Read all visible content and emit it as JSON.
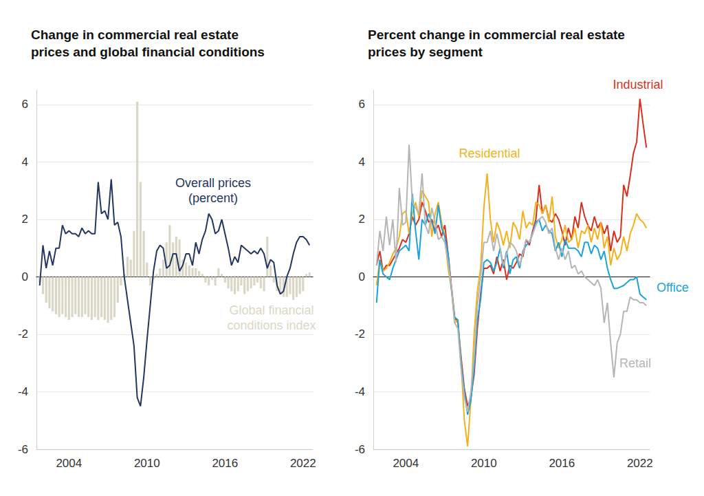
{
  "chart_data": [
    {
      "type": "line",
      "title": "Change in commercial real estate\nprices and global financial conditions",
      "x": [
        2001.75,
        2002,
        2002.25,
        2002.5,
        2002.75,
        2003,
        2003.25,
        2003.5,
        2003.75,
        2004,
        2004.25,
        2004.5,
        2004.75,
        2005,
        2005.25,
        2005.5,
        2005.75,
        2006,
        2006.25,
        2006.5,
        2006.75,
        2007,
        2007.25,
        2007.5,
        2007.75,
        2008,
        2008.25,
        2008.5,
        2008.75,
        2009,
        2009.25,
        2009.5,
        2009.75,
        2010,
        2010.25,
        2010.5,
        2010.75,
        2011,
        2011.25,
        2011.5,
        2011.75,
        2012,
        2012.25,
        2012.5,
        2012.75,
        2013,
        2013.25,
        2013.5,
        2013.75,
        2014,
        2014.25,
        2014.5,
        2014.75,
        2015,
        2015.25,
        2015.5,
        2015.75,
        2016,
        2016.25,
        2016.5,
        2016.75,
        2017,
        2017.25,
        2017.5,
        2017.75,
        2018,
        2018.25,
        2018.5,
        2018.75,
        2019,
        2019.25,
        2019.5,
        2019.75,
        2020,
        2020.25,
        2020.5,
        2020.75,
        2021,
        2021.25,
        2021.5,
        2021.75,
        2022,
        2022.25,
        2022.5
      ],
      "xlim": [
        2001.5,
        2022.75
      ],
      "xticks": [
        2004,
        2010,
        2016,
        2022
      ],
      "ylim": [
        -6,
        6.5
      ],
      "yticks": [
        -6,
        -4,
        -2,
        0,
        2,
        4,
        6
      ],
      "grid": true,
      "series": [
        {
          "name": "Global financial\nconditions index",
          "type": "bar",
          "color": "#dad7c6",
          "values": [
            -0.2,
            -0.6,
            -0.9,
            -1.1,
            -1.2,
            -1.3,
            -1.4,
            -1.3,
            -1.4,
            -1.5,
            -1.4,
            -1.3,
            -1.4,
            -1.4,
            -1.3,
            -1.4,
            -1.5,
            -1.4,
            -1.5,
            -1.4,
            -1.5,
            -1.6,
            -1.5,
            -1.4,
            -0.9,
            -0.3,
            0.1,
            0.7,
            0.6,
            1.6,
            6.1,
            3.3,
            1.6,
            0.5,
            -0.3,
            -0.1,
            0.1,
            0.3,
            0.6,
            1.2,
            1.8,
            1.2,
            1.4,
            1.3,
            0.6,
            0.5,
            0.4,
            0.3,
            0.3,
            0.2,
            0.1,
            -0.2,
            -0.3,
            -0.1,
            -0.3,
            0.3,
            0.1,
            -0.2,
            -0.4,
            -0.5,
            -0.6,
            -0.5,
            -0.3,
            -0.6,
            -0.5,
            -0.4,
            -0.3,
            -0.2,
            -0.4,
            -0.5,
            1.4,
            0.4,
            -0.2,
            -0.5,
            -0.6,
            -0.7,
            -0.7,
            -0.6,
            -0.8,
            -0.7,
            -0.6,
            -0.5,
            0.1,
            0.15
          ]
        },
        {
          "name": "Overall prices\n(percent)",
          "type": "line",
          "color": "#23365f",
          "values": [
            -0.3,
            1.1,
            0.3,
            0.9,
            0.4,
            1.0,
            1.0,
            1.8,
            1.5,
            1.6,
            1.5,
            1.5,
            1.4,
            1.7,
            1.5,
            1.6,
            1.5,
            1.5,
            3.3,
            2.2,
            2.3,
            2.0,
            3.4,
            1.8,
            1.9,
            1.4,
            0.0,
            -0.8,
            -1.6,
            -2.4,
            -4.2,
            -4.5,
            -3.5,
            -2.2,
            -1.0,
            0.2,
            0.9,
            1.1,
            1.0,
            0.3,
            0.4,
            0.8,
            0.8,
            0.2,
            0.4,
            0.8,
            0.8,
            0.4,
            1.2,
            0.8,
            1.3,
            1.6,
            2.2,
            2.0,
            1.5,
            1.6,
            2.0,
            1.5,
            1.0,
            0.4,
            0.7,
            0.5,
            1.1,
            1.0,
            0.9,
            0.8,
            0.9,
            0.8,
            1.0,
            0.8,
            0.3,
            0.6,
            0.5,
            -0.3,
            -0.6,
            -0.5,
            0.0,
            0.3,
            0.8,
            1.2,
            1.4,
            1.4,
            1.3,
            1.1
          ]
        }
      ]
    },
    {
      "type": "line",
      "title": "Percent change in commercial real estate\nprices by segment",
      "x": [
        2001.75,
        2002,
        2002.25,
        2002.5,
        2002.75,
        2003,
        2003.25,
        2003.5,
        2003.75,
        2004,
        2004.25,
        2004.5,
        2004.75,
        2005,
        2005.25,
        2005.5,
        2005.75,
        2006,
        2006.25,
        2006.5,
        2006.75,
        2007,
        2007.25,
        2007.5,
        2007.75,
        2008,
        2008.25,
        2008.5,
        2008.75,
        2009,
        2009.25,
        2009.5,
        2009.75,
        2010,
        2010.25,
        2010.5,
        2010.75,
        2011,
        2011.25,
        2011.5,
        2011.75,
        2012,
        2012.25,
        2012.5,
        2012.75,
        2013,
        2013.25,
        2013.5,
        2013.75,
        2014,
        2014.25,
        2014.5,
        2014.75,
        2015,
        2015.25,
        2015.5,
        2015.75,
        2016,
        2016.25,
        2016.5,
        2016.75,
        2017,
        2017.25,
        2017.5,
        2017.75,
        2018,
        2018.25,
        2018.5,
        2018.75,
        2019,
        2019.25,
        2019.5,
        2019.75,
        2020,
        2020.25,
        2020.5,
        2020.75,
        2021,
        2021.25,
        2021.5,
        2021.75,
        2022,
        2022.25,
        2022.5
      ],
      "xlim": [
        2001.5,
        2022.75
      ],
      "xticks": [
        2004,
        2010,
        2016,
        2022
      ],
      "ylim": [
        -6,
        6.5
      ],
      "yticks": [
        -6,
        -4,
        -2,
        0,
        2,
        4,
        6
      ],
      "grid": true,
      "series": [
        {
          "name": "Industrial",
          "color": "#d7301f",
          "values": [
            0.4,
            0.9,
            0.2,
            0.4,
            0.4,
            0.6,
            0.8,
            1.0,
            1.3,
            1.2,
            1.5,
            2.1,
            1.8,
            2.0,
            2.6,
            2.3,
            1.9,
            2.0,
            1.6,
            1.8,
            1.4,
            1.8,
            0.8,
            -0.3,
            -1.4,
            -1.6,
            -2.8,
            -3.9,
            -4.5,
            -4.2,
            -3.4,
            -1.8,
            -0.6,
            0.3,
            0.3,
            0.4,
            0.1,
            0.7,
            0.2,
            0.6,
            -0.1,
            0.4,
            0.3,
            0.5,
            0.8,
            0.7,
            1.3,
            1.1,
            1.6,
            2.0,
            3.2,
            2.2,
            2.5,
            2.0,
            1.9,
            2.2,
            2.0,
            1.6,
            1.1,
            1.7,
            1.3,
            2.1,
            1.7,
            2.6,
            2.1,
            1.8,
            1.6,
            2.1,
            1.7,
            1.9,
            1.5,
            1.8,
            0.9,
            1.6,
            1.2,
            1.4,
            3.2,
            2.8,
            3.5,
            4.3,
            4.7,
            6.2,
            5.3,
            4.5
          ]
        },
        {
          "name": "Residential",
          "color": "#f2b21b",
          "values": [
            -0.3,
            0.6,
            0.2,
            0.3,
            0.5,
            0.8,
            1.0,
            1.4,
            2.2,
            2.3,
            1.5,
            2.2,
            2.6,
            2.1,
            3.0,
            2.8,
            2.6,
            1.4,
            2.2,
            2.6,
            1.9,
            1.4,
            0.3,
            -0.4,
            -1.6,
            -1.5,
            -3.0,
            -5.0,
            -5.9,
            -4.3,
            -2.0,
            -0.5,
            0.3,
            2.4,
            3.6,
            2.0,
            1.2,
            1.9,
            1.6,
            1.1,
            1.6,
            1.0,
            1.9,
            1.7,
            1.3,
            2.3,
            1.7,
            1.9,
            1.8,
            2.6,
            2.5,
            2.2,
            2.5,
            1.9,
            2.8,
            1.4,
            1.0,
            1.3,
            1.8,
            1.2,
            1.3,
            1.7,
            1.0,
            1.6,
            1.5,
            1.8,
            1.2,
            1.7,
            1.3,
            1.9,
            1.0,
            1.4,
            0.4,
            1.0,
            0.6,
            0.8,
            1.4,
            0.9,
            1.5,
            1.8,
            2.2,
            2.0,
            1.9,
            1.7
          ]
        },
        {
          "name": "Office",
          "color": "#1aa3d9",
          "values": [
            -0.9,
            0.6,
            0.1,
            0.0,
            -0.1,
            0.3,
            0.6,
            0.9,
            1.0,
            1.1,
            0.9,
            2.9,
            1.6,
            0.6,
            2.0,
            1.8,
            2.2,
            1.9,
            1.5,
            2.5,
            1.7,
            1.4,
            0.8,
            -0.4,
            -1.4,
            -1.5,
            -3.0,
            -4.0,
            -4.8,
            -4.3,
            -3.2,
            -1.5,
            -0.8,
            0.5,
            0.6,
            0.5,
            0.2,
            0.5,
            1.0,
            0.3,
            0.9,
            0.1,
            0.6,
            0.7,
            0.3,
            0.9,
            1.1,
            1.2,
            1.5,
            1.9,
            2.0,
            1.6,
            1.8,
            1.6,
            1.5,
            0.9,
            1.2,
            0.7,
            1.3,
            1.0,
            1.0,
            1.0,
            0.9,
            0.7,
            1.2,
            1.2,
            0.8,
            1.1,
            1.0,
            0.6,
            0.9,
            0.3,
            -0.1,
            -0.4,
            -0.4,
            -0.35,
            -0.3,
            -0.2,
            -0.1,
            -0.1,
            0.0,
            -0.6,
            -0.7,
            -0.8
          ]
        },
        {
          "name": "Retail",
          "color": "#b5b5b5",
          "values": [
            0.4,
            1.6,
            0.9,
            2.1,
            1.1,
            2.0,
            0.5,
            3.1,
            1.8,
            1.9,
            4.6,
            2.6,
            2.4,
            2.2,
            3.6,
            1.8,
            1.5,
            2.4,
            1.9,
            1.3,
            1.4,
            1.2,
            0.5,
            -0.3,
            -1.6,
            -1.8,
            -3.2,
            -4.2,
            -4.7,
            -4.0,
            -2.8,
            -1.0,
            0.0,
            1.2,
            1.2,
            1.6,
            0.9,
            1.5,
            1.0,
            0.4,
            0.8,
            1.2,
            1.1,
            0.9,
            0.4,
            0.8,
            1.3,
            1.2,
            1.5,
            1.8,
            2.0,
            2.1,
            1.9,
            1.5,
            1.7,
            1.0,
            0.6,
            1.0,
            0.6,
            0.9,
            0.3,
            0.4,
            0.1,
            0.2,
            0.0,
            -0.1,
            -0.2,
            -0.3,
            -0.1,
            -0.4,
            -1.6,
            -0.9,
            -2.3,
            -3.5,
            -2.3,
            -2.0,
            -1.2,
            -1.2,
            -0.7,
            -0.8,
            -0.8,
            -0.9,
            -0.9,
            -1.0
          ]
        }
      ]
    }
  ]
}
